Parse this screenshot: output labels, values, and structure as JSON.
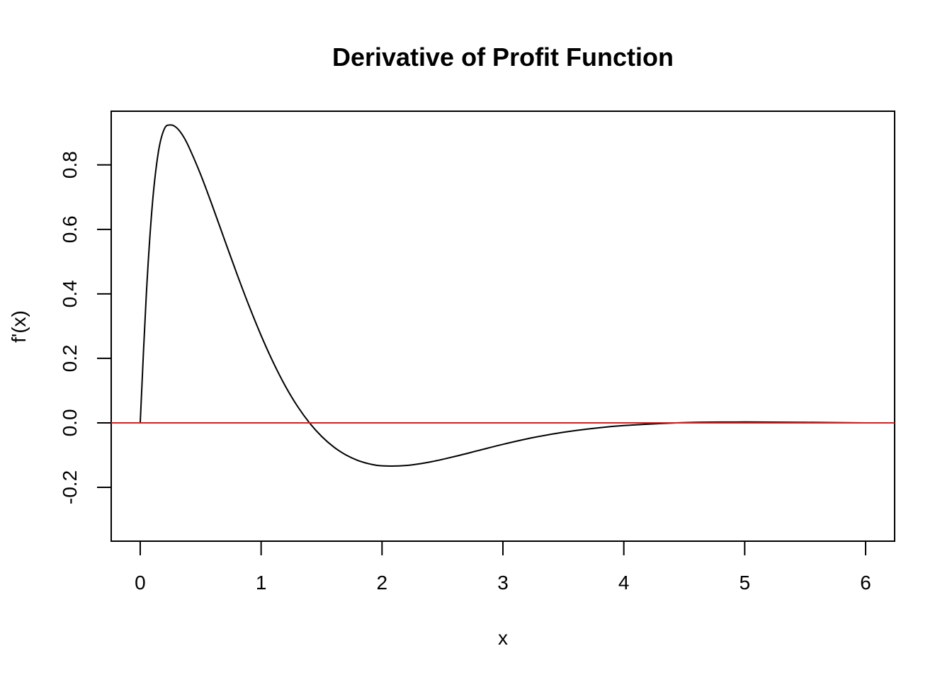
{
  "chart_data": {
    "type": "line",
    "title": "Derivative of Profit Function",
    "xlabel": "x",
    "ylabel": "f'(x)",
    "xlim": [
      -0.24,
      6.24
    ],
    "ylim": [
      -0.367,
      0.9665
    ],
    "xticks": [
      0,
      1,
      2,
      3,
      4,
      5,
      6
    ],
    "xtick_labels": [
      "0",
      "1",
      "2",
      "3",
      "4",
      "5",
      "6"
    ],
    "yticks": [
      -0.2,
      0.0,
      0.2,
      0.4,
      0.6,
      0.8
    ],
    "ytick_labels": [
      "-0.2",
      "0.0",
      "0.2",
      "0.4",
      "0.6",
      "0.8"
    ],
    "grid": false,
    "series": [
      {
        "color": "#000000",
        "x": [
          0,
          0.05,
          0.1,
          0.15,
          0.2,
          0.25,
          0.3,
          0.35,
          0.4,
          0.5,
          0.6,
          0.7,
          0.8,
          0.9,
          1.0,
          1.1,
          1.2,
          1.3,
          1.4,
          1.5,
          1.6,
          1.7,
          1.8,
          1.9,
          2.0,
          2.2,
          2.4,
          2.6,
          2.8,
          3.0,
          3.25,
          3.5,
          3.75,
          4.0,
          4.5,
          5.0,
          5.5,
          6.0
        ],
        "y": [
          0,
          0.395,
          0.676,
          0.8398,
          0.9121,
          0.9238,
          0.9155,
          0.8924,
          0.8575,
          0.7699,
          0.6697,
          0.5652,
          0.4617,
          0.3628,
          0.2708,
          0.1876,
          0.1142,
          0.0518,
          0.0,
          -0.0419,
          -0.0747,
          -0.0993,
          -0.1166,
          -0.1277,
          -0.1334,
          -0.1323,
          -0.1212,
          -0.1045,
          -0.0856,
          -0.0667,
          -0.0458,
          -0.0293,
          -0.0171,
          -0.0085,
          0.0008,
          0.0025,
          0.0015,
          0.0
        ]
      },
      {
        "color": "#e31a1c",
        "type": "hline",
        "y": 0
      }
    ]
  }
}
